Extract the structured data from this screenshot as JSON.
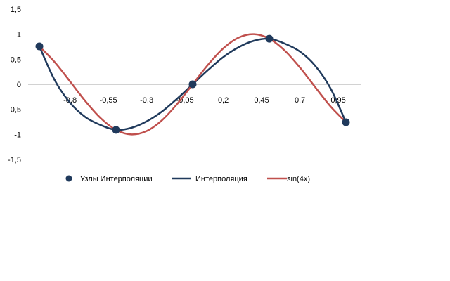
{
  "chart_data": {
    "type": "line",
    "title": "",
    "xlabel": "",
    "ylabel": "",
    "xlim": [
      -1.0,
      1.1
    ],
    "ylim": [
      -1.5,
      1.5
    ],
    "x_ticks": [
      -0.8,
      -0.55,
      -0.3,
      -0.05,
      0.2,
      0.45,
      0.7,
      0.95
    ],
    "x_tick_labels": [
      "-0,8",
      "-0,55",
      "-0,3",
      "-0,05",
      "0,2",
      "0,45",
      "0,7",
      "0,95"
    ],
    "y_ticks": [
      -1.5,
      -1,
      -0.5,
      0,
      0.5,
      1,
      1.5
    ],
    "y_tick_labels": [
      "-1,5",
      "-1",
      "-0,5",
      "0",
      "0,5",
      "1",
      "1,5"
    ],
    "grid": false,
    "legend_position": "bottom",
    "series": [
      {
        "name": "Узлы Интерполяции",
        "kind": "scatter",
        "color": "#203a5c",
        "x": [
          -1.0,
          -0.5,
          0.0,
          0.5,
          1.0
        ],
        "y": [
          0.757,
          -0.909,
          0.0,
          0.909,
          -0.757
        ]
      },
      {
        "name": "Интерполяция",
        "kind": "line",
        "color": "#203a5c",
        "x": [
          -1.0,
          -0.9,
          -0.8,
          -0.7,
          -0.6,
          -0.5,
          -0.4,
          -0.3,
          -0.2,
          -0.1,
          0.0,
          0.1,
          0.2,
          0.3,
          0.4,
          0.5,
          0.6,
          0.7,
          0.8,
          0.9,
          1.0
        ],
        "y": [
          0.757,
          0.083,
          -0.368,
          -0.653,
          -0.813,
          -0.909,
          -0.869,
          -0.74,
          -0.544,
          -0.284,
          0.0,
          0.284,
          0.544,
          0.74,
          0.869,
          0.909,
          0.813,
          0.653,
          0.368,
          -0.083,
          -0.757
        ]
      },
      {
        "name": "sin(4x)",
        "kind": "line",
        "color": "#c0504d",
        "x": [
          -1.0,
          -0.9,
          -0.8,
          -0.7,
          -0.6,
          -0.5,
          -0.4,
          -0.3,
          -0.2,
          -0.1,
          0.0,
          0.1,
          0.2,
          0.3,
          0.4,
          0.5,
          0.6,
          0.7,
          0.8,
          0.9,
          1.0
        ],
        "y": [
          0.757,
          0.443,
          0.058,
          -0.335,
          -0.675,
          -0.909,
          -1.0,
          -0.932,
          -0.717,
          -0.389,
          0.0,
          0.389,
          0.717,
          0.932,
          1.0,
          0.909,
          0.675,
          0.335,
          -0.058,
          -0.443,
          -0.757
        ]
      }
    ]
  }
}
